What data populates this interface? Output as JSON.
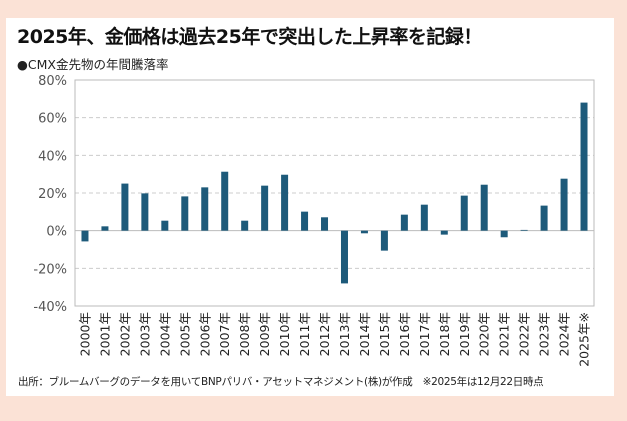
{
  "title": "2025年、金価格は過去25年で突出した上昇率を記録！",
  "subtitle": "●CMX金先物の年間騰落率",
  "note": "出所：ブルームバーグのデータを用いてBNPパリバ・アセットマネジメント(株)が作成　※2025年は12月22日時点",
  "colors": {
    "bar": "#1d5a7a",
    "background": "#fbe2d6",
    "grid": "#cccccc"
  },
  "chart_data": {
    "type": "bar",
    "title": "2025年、金価格は過去25年で突出した上昇率を記録！",
    "subtitle": "●CMX金先物の年間騰落率",
    "xlabel": "",
    "ylabel": "",
    "ylim": [
      -40,
      80
    ],
    "yticks": [
      "80%",
      "60%",
      "40%",
      "20%",
      "0%",
      "-20%",
      "-40%"
    ],
    "ytick_values": [
      80,
      60,
      40,
      20,
      0,
      -20,
      -40
    ],
    "grid": "horizontal dashed",
    "categories": [
      "2000年",
      "2001年",
      "2002年",
      "2003年",
      "2004年",
      "2005年",
      "2006年",
      "2007年",
      "2008年",
      "2009年",
      "2010年",
      "2011年",
      "2012年",
      "2013年",
      "2014年",
      "2015年",
      "2016年",
      "2017年",
      "2018年",
      "2019年",
      "2020年",
      "2021年",
      "2022年",
      "2023年",
      "2024年",
      "2025年※"
    ],
    "values": [
      -5.7,
      2.3,
      25.0,
      19.8,
      5.3,
      18.2,
      23.0,
      31.3,
      5.3,
      23.9,
      29.7,
      10.1,
      7.1,
      -28.0,
      -1.4,
      -10.6,
      8.5,
      13.8,
      -2.1,
      18.6,
      24.4,
      -3.5,
      0.4,
      13.3,
      27.6,
      68.0
    ]
  }
}
